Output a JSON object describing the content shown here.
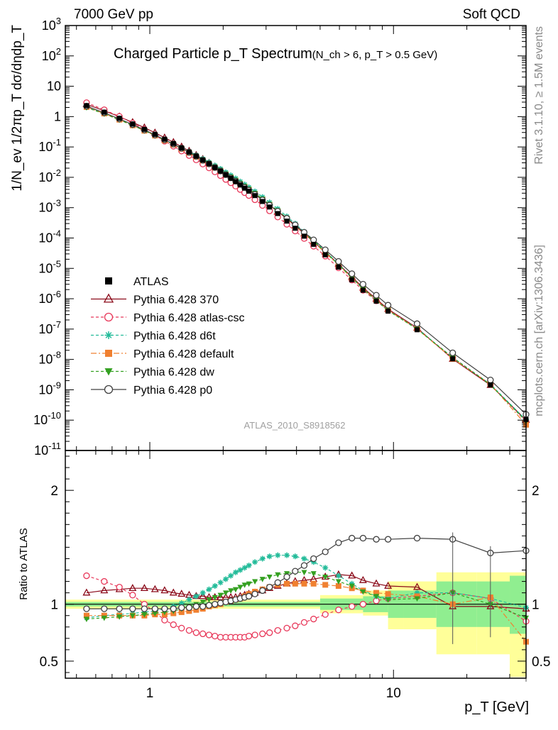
{
  "header": {
    "left": "7000 GeV pp",
    "right": "Soft QCD"
  },
  "side_labels": {
    "top": "Rivet 3.1.10, ≥ 1.5M events",
    "bottom": "mcplots.cern.ch [arXiv:1306.3436]"
  },
  "watermark": "ATLAS_2010_S8918562",
  "chart_data": {
    "type": "scatter",
    "title": "Charged Particle p_T Spectrum",
    "title_cut": "(N_ch > 6, p_T > 0.5 GeV)",
    "xlabel": "p_T  [GeV]",
    "ylabel_main": "1/N_ev 1/2πp_T dσ/dηdp_T",
    "ylabel_ratio": "Ratio to ATLAS",
    "xscale": "log",
    "xlim": [
      0.45,
      35
    ],
    "ylim_main": [
      1e-11,
      1000.0
    ],
    "ylim_ratio": [
      0.35,
      2.35
    ],
    "legend_position": "left-middle",
    "x_tick_labels": [
      "1",
      "10"
    ],
    "y_tick_labels_main": [
      "10^-11",
      "10^-10",
      "10^-9",
      "10^-8",
      "10^-7",
      "10^-6",
      "10^-5",
      "10^-4",
      "10^-3",
      "10^-2",
      "10^-1",
      "1",
      "10",
      "10^2",
      "10^3"
    ],
    "y_tick_labels_ratio": [
      "0.5",
      "1",
      "2"
    ],
    "x": [
      0.55,
      0.65,
      0.75,
      0.85,
      0.95,
      1.05,
      1.15,
      1.25,
      1.35,
      1.45,
      1.55,
      1.65,
      1.75,
      1.85,
      1.95,
      2.05,
      2.15,
      2.25,
      2.35,
      2.45,
      2.55,
      2.7,
      2.9,
      3.1,
      3.35,
      3.65,
      3.95,
      4.3,
      4.7,
      5.25,
      5.95,
      6.75,
      7.5,
      8.5,
      9.5,
      12.5,
      17.5,
      25,
      35
    ],
    "reference": {
      "name": "ATLAS",
      "color": "#000000",
      "dsigma": [
        2.3,
        1.4,
        0.88,
        0.57,
        0.38,
        0.26,
        0.18,
        0.13,
        0.093,
        0.068,
        0.05,
        0.037,
        0.028,
        0.021,
        0.016,
        0.012,
        0.0093,
        0.0072,
        0.0056,
        0.0044,
        0.0035,
        0.0025,
        0.0016,
        0.00105,
        0.00064,
        0.00036,
        0.00021,
        0.000115,
        6.2e-05,
        2.8e-05,
        1.1e-05,
        4.2e-06,
        1.9e-06,
        8.3e-07,
        3.9e-07,
        9.5e-08,
        1.05e-08,
        1.45e-09,
        1.05e-10
      ]
    },
    "series": [
      {
        "name": "Pythia 6.428 370",
        "color": "#8b0a1a",
        "marker": "triangle-open",
        "dash": "",
        "ratio": [
          1.1,
          1.12,
          1.13,
          1.14,
          1.14,
          1.13,
          1.12,
          1.1,
          1.09,
          1.08,
          1.07,
          1.07,
          1.06,
          1.06,
          1.06,
          1.06,
          1.06,
          1.06,
          1.07,
          1.08,
          1.09,
          1.1,
          1.12,
          1.14,
          1.16,
          1.18,
          1.2,
          1.21,
          1.22,
          1.24,
          1.26,
          1.25,
          1.21,
          1.18,
          1.16,
          1.15,
          0.98,
          0.98,
          0.96
        ]
      },
      {
        "name": "Pythia 6.428 atlas-csc",
        "color": "#e8385a",
        "marker": "circle-open",
        "dash": "4,3",
        "ratio": [
          1.25,
          1.2,
          1.15,
          1.08,
          1.0,
          0.93,
          0.86,
          0.82,
          0.79,
          0.77,
          0.75,
          0.74,
          0.73,
          0.72,
          0.71,
          0.71,
          0.71,
          0.71,
          0.71,
          0.71,
          0.72,
          0.73,
          0.74,
          0.75,
          0.77,
          0.79,
          0.81,
          0.84,
          0.87,
          0.91,
          0.95,
          0.98,
          1.0,
          1.03,
          1.05,
          1.07,
          1.1,
          1.05,
          0.85
        ]
      },
      {
        "name": "Pythia 6.428 d6t",
        "color": "#22bb99",
        "marker": "star",
        "dash": "4,3",
        "ratio": [
          0.88,
          0.9,
          0.91,
          0.92,
          0.93,
          0.94,
          0.96,
          0.98,
          1.01,
          1.04,
          1.07,
          1.1,
          1.13,
          1.16,
          1.19,
          1.22,
          1.25,
          1.28,
          1.3,
          1.32,
          1.34,
          1.37,
          1.4,
          1.42,
          1.43,
          1.43,
          1.42,
          1.4,
          1.37,
          1.32,
          1.25,
          1.18,
          1.12,
          1.07,
          1.05,
          1.1,
          1.1,
          1.05,
          0.97
        ]
      },
      {
        "name": "Pythia 6.428 default",
        "color": "#f08030",
        "marker": "square",
        "dash": "8,3,2,3",
        "ratio": [
          0.9,
          0.9,
          0.9,
          0.9,
          0.9,
          0.91,
          0.91,
          0.92,
          0.93,
          0.94,
          0.95,
          0.96,
          0.98,
          0.99,
          1.0,
          1.02,
          1.03,
          1.04,
          1.05,
          1.07,
          1.09,
          1.11,
          1.13,
          1.15,
          1.17,
          1.18,
          1.18,
          1.18,
          1.18,
          1.17,
          1.16,
          1.14,
          1.12,
          1.1,
          1.09,
          1.07,
          1.0,
          1.06,
          0.67
        ]
      },
      {
        "name": "Pythia 6.428 dw",
        "color": "#33a020",
        "marker": "triangle-down",
        "dash": "4,3",
        "ratio": [
          0.87,
          0.88,
          0.89,
          0.9,
          0.91,
          0.92,
          0.93,
          0.94,
          0.96,
          0.98,
          1.0,
          1.02,
          1.04,
          1.06,
          1.08,
          1.1,
          1.12,
          1.13,
          1.15,
          1.17,
          1.18,
          1.2,
          1.22,
          1.24,
          1.26,
          1.27,
          1.28,
          1.28,
          1.27,
          1.24,
          1.2,
          1.16,
          1.11,
          1.07,
          1.04,
          1.05,
          1.1,
          1.0,
          0.88
        ]
      },
      {
        "name": "Pythia 6.428 p0",
        "color": "#404040",
        "marker": "circle-open",
        "dash": "",
        "ratio": [
          0.96,
          0.96,
          0.96,
          0.96,
          0.96,
          0.96,
          0.96,
          0.96,
          0.97,
          0.97,
          0.98,
          0.98,
          0.99,
          1.0,
          1.01,
          1.02,
          1.03,
          1.04,
          1.05,
          1.06,
          1.07,
          1.09,
          1.12,
          1.15,
          1.19,
          1.24,
          1.29,
          1.34,
          1.4,
          1.46,
          1.54,
          1.58,
          1.58,
          1.57,
          1.57,
          1.58,
          1.57,
          1.45,
          1.47
        ]
      }
    ],
    "uncertainty_band_edges": [
      0.45,
      5.0,
      7.5,
      9.5,
      11.0,
      15.0,
      22.0,
      30.0,
      35.0
    ],
    "uncertainty_inner": [
      [
        0.98,
        1.02
      ],
      [
        0.95,
        1.05
      ],
      [
        0.93,
        1.07
      ],
      [
        0.88,
        1.12
      ],
      [
        0.88,
        1.12
      ],
      [
        0.8,
        1.2
      ],
      [
        0.8,
        1.2
      ],
      [
        0.74,
        1.25
      ]
    ],
    "uncertainty_outer": [
      [
        0.96,
        1.04
      ],
      [
        0.92,
        1.08
      ],
      [
        0.9,
        1.12
      ],
      [
        0.78,
        1.2
      ],
      [
        0.78,
        1.2
      ],
      [
        0.56,
        1.28
      ],
      [
        0.56,
        1.28
      ],
      [
        0.36,
        1.28
      ]
    ]
  }
}
